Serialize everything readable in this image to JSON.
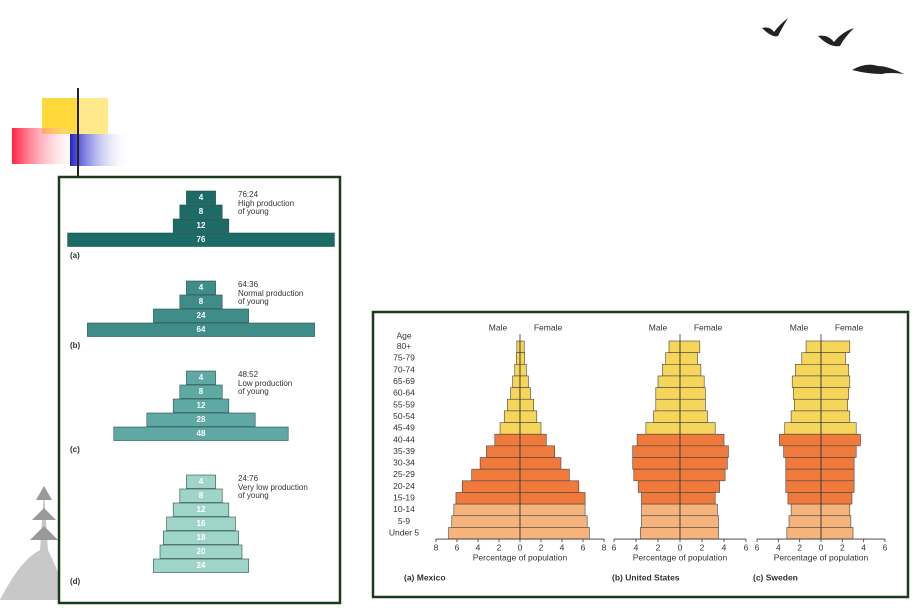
{
  "chart_data": [
    {
      "type": "age-structure",
      "panel": "(a)",
      "ratio": "76:24",
      "description": [
        "High production",
        "of young"
      ],
      "values": [
        4,
        8,
        12,
        76
      ],
      "color": "#1d6b66"
    },
    {
      "type": "age-structure",
      "panel": "(b)",
      "ratio": "64:36",
      "description": [
        "Normal production",
        "of young"
      ],
      "values": [
        4,
        8,
        24,
        64
      ],
      "color": "#3f8d88"
    },
    {
      "type": "age-structure",
      "panel": "(c)",
      "ratio": "48:52",
      "description": [
        "Low production",
        "of young"
      ],
      "values": [
        4,
        8,
        12,
        28,
        48
      ],
      "color": "#5ea9a3"
    },
    {
      "type": "age-structure",
      "panel": "(d)",
      "ratio": "24:76",
      "description": [
        "Very low production",
        "of young"
      ],
      "values": [
        4,
        8,
        12,
        16,
        18,
        20,
        24
      ],
      "color": "#9fd5c9"
    },
    {
      "type": "pyramid",
      "title": "(a) Mexico",
      "age_label": "Age",
      "x_label": "Percentage of population",
      "categories": [
        "80+",
        "75-79",
        "70-74",
        "65-69",
        "60-64",
        "55-59",
        "50-54",
        "45-49",
        "40-44",
        "35-39",
        "30-34",
        "25-29",
        "20-24",
        "15-19",
        "10-14",
        "5-9",
        "Under 5"
      ],
      "category_colors": [
        "#f6d65a",
        "#f6d65a",
        "#f6d65a",
        "#f6d65a",
        "#f6d65a",
        "#f6d65a",
        "#f6d65a",
        "#f6d65a",
        "#f07a3c",
        "#f07a3c",
        "#f07a3c",
        "#f07a3c",
        "#f07a3c",
        "#f07a3c",
        "#f6b47c",
        "#f6b47c",
        "#f6b47c"
      ],
      "series": [
        {
          "name": "Male",
          "values": [
            0.3,
            0.35,
            0.5,
            0.7,
            0.9,
            1.2,
            1.5,
            1.9,
            2.4,
            3.2,
            3.8,
            4.6,
            5.5,
            6.1,
            6.3,
            6.5,
            6.8
          ]
        },
        {
          "name": "Female",
          "values": [
            0.4,
            0.45,
            0.6,
            0.8,
            1.0,
            1.3,
            1.6,
            2.0,
            2.5,
            3.3,
            3.9,
            4.7,
            5.6,
            6.2,
            6.2,
            6.4,
            6.6
          ]
        }
      ],
      "xlim": [
        -8,
        8
      ],
      "xticks": [
        {
          "value": -8,
          "label": "8"
        },
        {
          "value": -6,
          "label": "6"
        },
        {
          "value": -4,
          "label": "4"
        },
        {
          "value": -2,
          "label": "2"
        },
        0,
        2,
        4,
        6,
        8
      ]
    },
    {
      "type": "pyramid",
      "title": "(b) United States",
      "x_label": "Percentage of population",
      "category_colors": [
        "#f6d65a",
        "#f6d65a",
        "#f6d65a",
        "#f6d65a",
        "#f6d65a",
        "#f6d65a",
        "#f6d65a",
        "#f6d65a",
        "#f07a3c",
        "#f07a3c",
        "#f07a3c",
        "#f07a3c",
        "#f07a3c",
        "#f07a3c",
        "#f6b47c",
        "#f6b47c",
        "#f6b47c"
      ],
      "series": [
        {
          "name": "Male",
          "values": [
            1.0,
            1.3,
            1.6,
            2.0,
            2.2,
            2.2,
            2.4,
            3.1,
            3.9,
            4.3,
            4.3,
            4.2,
            3.8,
            3.5,
            3.5,
            3.5,
            3.6
          ]
        },
        {
          "name": "Female",
          "values": [
            1.8,
            1.6,
            1.9,
            2.2,
            2.3,
            2.3,
            2.5,
            3.2,
            4.0,
            4.4,
            4.3,
            4.1,
            3.6,
            3.2,
            3.4,
            3.5,
            3.5
          ]
        }
      ],
      "xlim": [
        -6,
        6
      ],
      "xticks": [
        {
          "value": -6,
          "label": "6"
        },
        {
          "value": -4,
          "label": "4"
        },
        {
          "value": -2,
          "label": "2"
        },
        0,
        2,
        4,
        6
      ]
    },
    {
      "type": "pyramid",
      "title": "(c) Sweden",
      "x_label": "Percentage of population",
      "category_colors": [
        "#f6d65a",
        "#f6d65a",
        "#f6d65a",
        "#f6d65a",
        "#f6d65a",
        "#f6d65a",
        "#f6d65a",
        "#f6d65a",
        "#f07a3c",
        "#f07a3c",
        "#f07a3c",
        "#f07a3c",
        "#f07a3c",
        "#f07a3c",
        "#f6b47c",
        "#f6b47c",
        "#f6b47c"
      ],
      "series": [
        {
          "name": "Male",
          "values": [
            1.4,
            1.8,
            2.4,
            2.7,
            2.6,
            2.5,
            2.8,
            3.4,
            3.9,
            3.5,
            3.3,
            3.3,
            3.3,
            3.1,
            2.8,
            3.0,
            3.2
          ]
        },
        {
          "name": "Female",
          "values": [
            2.7,
            2.3,
            2.6,
            2.7,
            2.6,
            2.5,
            2.7,
            3.3,
            3.7,
            3.3,
            3.1,
            3.1,
            3.1,
            2.9,
            2.7,
            2.8,
            3.0
          ]
        }
      ],
      "xlim": [
        -6,
        6
      ],
      "xticks": [
        {
          "value": -6,
          "label": "6"
        },
        {
          "value": -4,
          "label": "4"
        },
        {
          "value": -2,
          "label": "2"
        },
        0,
        2,
        4,
        6
      ]
    }
  ]
}
